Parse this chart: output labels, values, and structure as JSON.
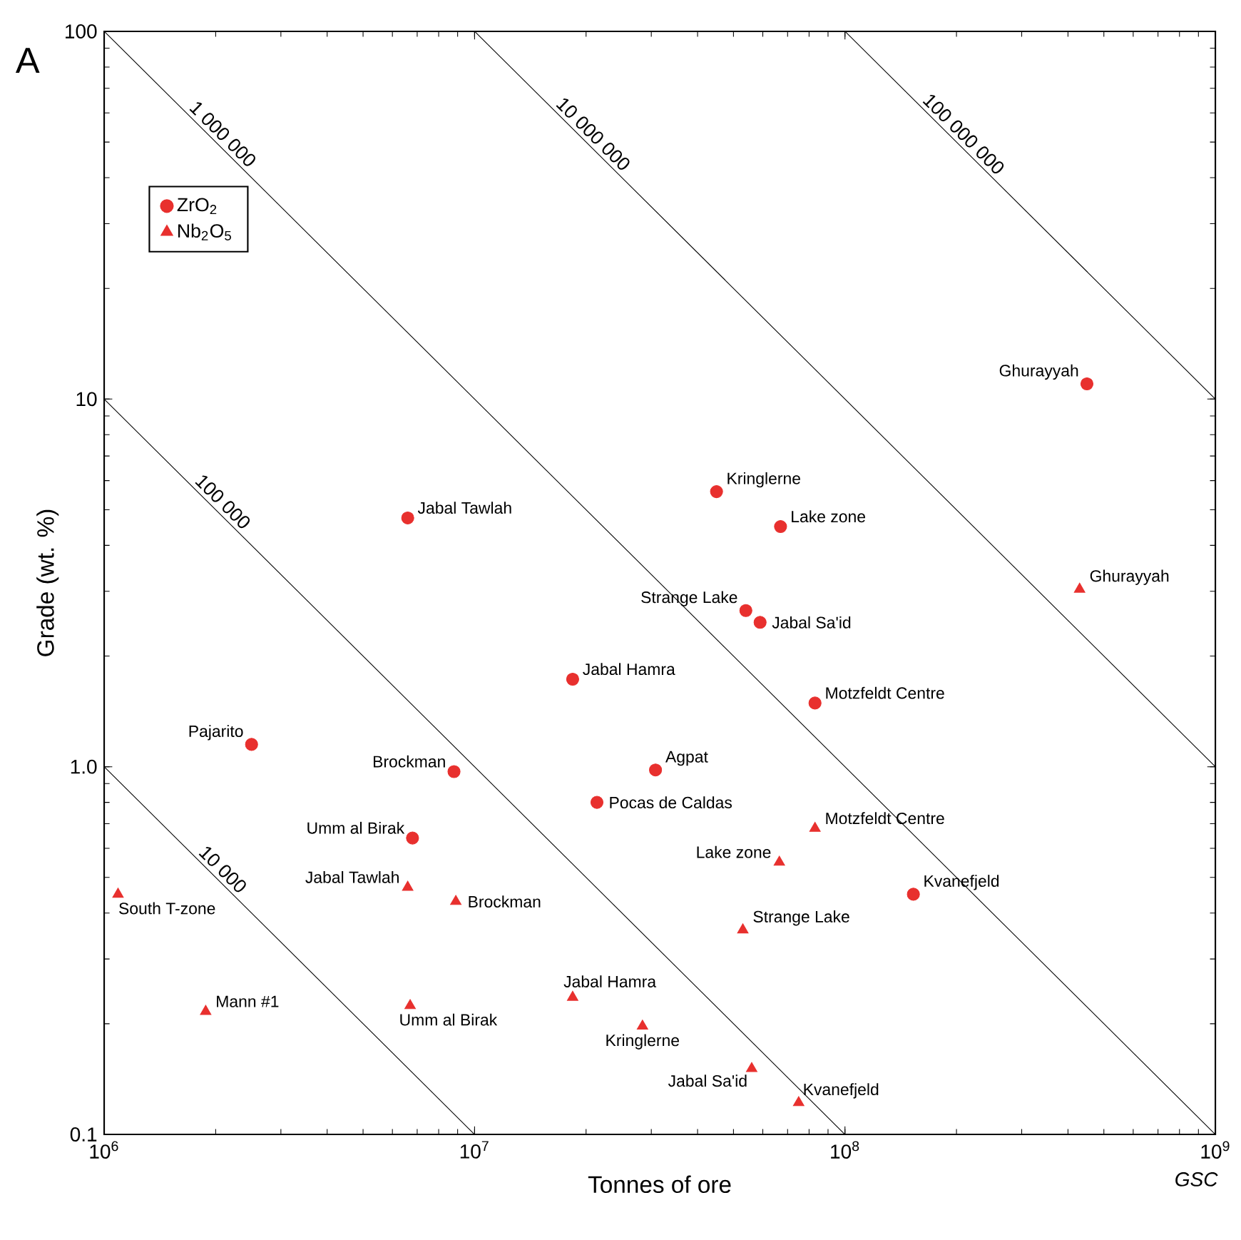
{
  "chart_data": {
    "type": "scatter",
    "xlabel": "Tonnes of ore",
    "ylabel": "Grade (wt. %)",
    "log": "xy",
    "xlim": [
      1000000,
      1000000000
    ],
    "ylim": [
      0.1,
      100
    ],
    "xticks": [
      {
        "value": 1000000,
        "label": "10$^{6}$"
      },
      {
        "value": 10000000,
        "label": "10$^{7}$"
      },
      {
        "value": 100000000,
        "label": "10$^{8}$"
      },
      {
        "value": 1000000000,
        "label": "10$^{9}$"
      }
    ],
    "yticks": [
      0.1,
      {
        "value": 1,
        "label": "1.0"
      },
      10,
      100
    ],
    "grid": false,
    "legend": "top left",
    "series": [
      {
        "name": "ZrO$_{2}$",
        "color": "#e8302e",
        "marker": "circle",
        "x": [
          450000000,
          45000000,
          67000000,
          6600000,
          54000000,
          59000000,
          18400000,
          83000000,
          2500000,
          8800000,
          30800000,
          21400000,
          6800000,
          153000000
        ],
        "values": [
          11.0,
          5.6,
          4.5,
          4.75,
          2.66,
          2.47,
          1.73,
          1.49,
          1.15,
          0.97,
          0.98,
          0.8,
          0.64,
          0.45
        ]
      },
      {
        "name": "Nb$_{2}$O$_{5}$",
        "color": "#e8302e",
        "marker": "triangle",
        "x": [
          430000000,
          83000000,
          66500000,
          1090000,
          6600000,
          8900000,
          53000000,
          1880000,
          6700000,
          18400000,
          28400000,
          56000000,
          75000000
        ],
        "values": [
          3.04,
          0.68,
          0.55,
          0.45,
          0.47,
          0.43,
          0.36,
          0.216,
          0.224,
          0.236,
          0.197,
          0.151,
          0.122
        ]
      },
      {
        "name": "1 000 000",
        "type": "line",
        "color": "#000000",
        "marker": "none",
        "x": [
          1000000,
          1000000000
        ],
        "values": [
          100,
          0.1
        ]
      },
      {
        "name": "10 000 000",
        "type": "line",
        "color": "#000000",
        "marker": "none",
        "x": [
          10000000,
          1000000000
        ],
        "values": [
          100,
          1
        ]
      },
      {
        "name": "100 000 000",
        "type": "line",
        "color": "#000000",
        "marker": "none",
        "x": [
          100000000,
          1000000000
        ],
        "values": [
          100,
          10
        ]
      },
      {
        "name": "100 000",
        "type": "line",
        "color": "#000000",
        "marker": "none",
        "x": [
          1000000,
          100000000
        ],
        "values": [
          10,
          0.1
        ]
      },
      {
        "name": "10 000",
        "type": "line",
        "color": "#000000",
        "marker": "none",
        "x": [
          1000000,
          10000000
        ],
        "values": [
          1,
          0.1
        ]
      }
    ],
    "annotations": [
      "A",
      "GSC",
      {
        "text": "Ghurayyah",
        "x": 450000000,
        "y": 11.0
      },
      {
        "text": "Kringlerne",
        "x": 45000000,
        "y": 5.6
      },
      {
        "text": "Lake zone",
        "x": 67000000,
        "y": 4.5
      },
      {
        "text": "Jabal Tawlah",
        "x": 6600000,
        "y": 4.75
      },
      {
        "text": "Strange Lake",
        "x": 54000000,
        "y": 2.66
      },
      {
        "text": "Jabal Sa'id",
        "x": 59000000,
        "y": 2.47
      },
      {
        "text": "Jabal Hamra",
        "x": 18400000,
        "y": 1.73
      },
      {
        "text": "Motzfeldt Centre",
        "x": 83000000,
        "y": 1.49
      },
      {
        "text": "Pajarito",
        "x": 2500000,
        "y": 1.15
      },
      {
        "text": "Brockman",
        "x": 8800000,
        "y": 0.97
      },
      {
        "text": "Agpat",
        "x": 30800000,
        "y": 0.98
      },
      {
        "text": "Pocas de Caldas",
        "x": 21400000,
        "y": 0.8
      },
      {
        "text": "Umm al Birak",
        "x": 6800000,
        "y": 0.64
      },
      {
        "text": "Kvanefjeld",
        "x": 153000000,
        "y": 0.45
      },
      {
        "text": "Ghurayyah",
        "x": 430000000,
        "y": 3.04
      },
      {
        "text": "Motzfeldt Centre",
        "x": 83000000,
        "y": 0.68
      },
      {
        "text": "Lake zone",
        "x": 66500000,
        "y": 0.55
      },
      {
        "text": "South T-zone",
        "x": 1090000,
        "y": 0.45
      },
      {
        "text": "Jabal Tawlah",
        "x": 6600000,
        "y": 0.47
      },
      {
        "text": "Brockman",
        "x": 8900000,
        "y": 0.43
      },
      {
        "text": "Strange Lake",
        "x": 53000000,
        "y": 0.36
      },
      {
        "text": "Mann #1",
        "x": 1880000,
        "y": 0.216
      },
      {
        "text": "Umm al Birak",
        "x": 6700000,
        "y": 0.224
      },
      {
        "text": "Jabal Hamra",
        "x": 18400000,
        "y": 0.236
      },
      {
        "text": "Kringlerne",
        "x": 28400000,
        "y": 0.197
      },
      {
        "text": "Jabal Sa'id",
        "x": 56000000,
        "y": 0.151
      },
      {
        "text": "Kvanefjeld",
        "x": 75000000,
        "y": 0.122
      }
    ]
  }
}
